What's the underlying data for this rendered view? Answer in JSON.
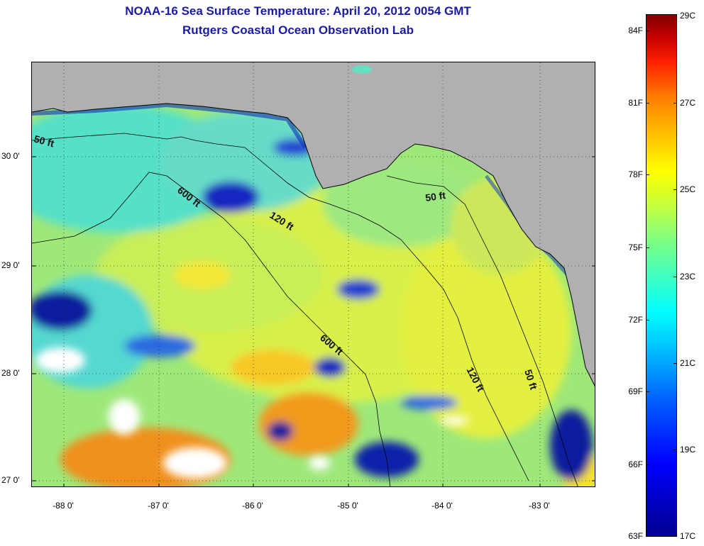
{
  "title": {
    "line1": "NOAA-16 Sea Surface Temperature:  April 20, 2012 0054 GMT",
    "line2": "Rutgers Coastal Ocean Observation Lab"
  },
  "map": {
    "lat_ticks": [
      "30 0'",
      "29 0'",
      "28 0'",
      "27 0'"
    ],
    "lon_ticks": [
      "-88 0'",
      "-87 0'",
      "-86 0'",
      "-85 0'",
      "-84 0'",
      "-83 0'"
    ],
    "contour_labels": [
      "50 ft",
      "600 ft",
      "120 ft",
      "50 ft",
      "600 ft",
      "120 ft",
      "50 ft"
    ],
    "colors": {
      "land": "#b0b0b0",
      "cloud": "#ffffff",
      "cold": "#00108f",
      "warm": "#f08c1c"
    }
  },
  "colorbar": {
    "fahrenheit": [
      "84F",
      "81F",
      "78F",
      "75F",
      "72F",
      "69F",
      "66F",
      "63F"
    ],
    "celsius": [
      "29C",
      "27C",
      "25C",
      "23C",
      "21C",
      "19C",
      "17C"
    ]
  }
}
